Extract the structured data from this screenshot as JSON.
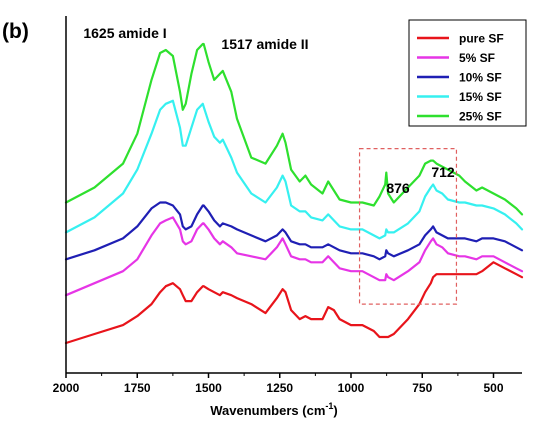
{
  "panel_label": "(b)",
  "chart_data": {
    "type": "line",
    "title": "",
    "xlabel": "Wavenumbers (cm",
    "xlabel_sup": "-1",
    "xlabel_close": ")",
    "ylabel": "",
    "xlim": [
      2000,
      400
    ],
    "ylim": [
      0,
      100
    ],
    "x_reversed": true,
    "y_ticks_shown": false,
    "grid": false,
    "legend_position": "top-right",
    "x_ticks": [
      2000,
      1750,
      1500,
      1250,
      1000,
      750,
      500
    ],
    "annotations": [
      {
        "text": "1625 amide I",
        "x": 1625
      },
      {
        "text": "1517 amide II",
        "x": 1517
      },
      {
        "text": "876",
        "x": 876
      },
      {
        "text": "712",
        "x": 712
      }
    ],
    "highlight_region": {
      "x": [
        970,
        630
      ],
      "y": [
        13,
        65
      ],
      "color": "#e06060",
      "style": "dashed"
    },
    "series": [
      {
        "name": "pure SF",
        "color": "#e8141b",
        "x": [
          2000,
          1900,
          1800,
          1750,
          1700,
          1670,
          1650,
          1625,
          1600,
          1590,
          1580,
          1560,
          1540,
          1520,
          1517,
          1500,
          1480,
          1460,
          1450,
          1420,
          1400,
          1350,
          1300,
          1260,
          1240,
          1230,
          1210,
          1180,
          1160,
          1140,
          1100,
          1080,
          1060,
          1040,
          1000,
          960,
          920,
          900,
          880,
          876,
          870,
          850,
          800,
          760,
          740,
          720,
          712,
          700,
          680,
          660,
          620,
          600,
          560,
          540,
          500,
          460,
          420,
          400
        ],
        "y": [
          0,
          3,
          6,
          9,
          13,
          17,
          19,
          20,
          18,
          16,
          14,
          14,
          17,
          19,
          19,
          18,
          17,
          16,
          17,
          16,
          15,
          13,
          10,
          15,
          18,
          17,
          11,
          8,
          9,
          8,
          8,
          12,
          11,
          8,
          6,
          6,
          4,
          2,
          2,
          2,
          2,
          3,
          8,
          13,
          17,
          20,
          22,
          23,
          23,
          23,
          23,
          23,
          23,
          24,
          27,
          25,
          23,
          22
        ]
      },
      {
        "name": "5% SF",
        "color": "#e635e6",
        "x": [
          2000,
          1900,
          1800,
          1750,
          1700,
          1670,
          1650,
          1625,
          1600,
          1590,
          1580,
          1560,
          1540,
          1520,
          1517,
          1500,
          1480,
          1460,
          1450,
          1420,
          1400,
          1350,
          1300,
          1260,
          1240,
          1230,
          1210,
          1180,
          1160,
          1140,
          1100,
          1080,
          1060,
          1040,
          1000,
          960,
          920,
          900,
          880,
          876,
          870,
          850,
          800,
          760,
          740,
          720,
          712,
          700,
          680,
          660,
          620,
          600,
          560,
          540,
          500,
          460,
          420,
          400
        ],
        "y": [
          16,
          20,
          24,
          28,
          36,
          40,
          41,
          42,
          38,
          34,
          33,
          34,
          38,
          40,
          40,
          38,
          35,
          33,
          34,
          32,
          30,
          29,
          28,
          32,
          35,
          33,
          29,
          28,
          28,
          27,
          27,
          29,
          27,
          25,
          24,
          24,
          22,
          21,
          21,
          23,
          22,
          21,
          24,
          27,
          31,
          34,
          35,
          33,
          32,
          30,
          29,
          29,
          28,
          29,
          29,
          27,
          25,
          24
        ]
      },
      {
        "name": "10% SF",
        "color": "#1f1fb4",
        "x": [
          2000,
          1900,
          1800,
          1750,
          1700,
          1670,
          1650,
          1625,
          1600,
          1590,
          1580,
          1560,
          1540,
          1520,
          1517,
          1500,
          1480,
          1460,
          1450,
          1420,
          1400,
          1350,
          1300,
          1260,
          1240,
          1230,
          1210,
          1180,
          1160,
          1140,
          1100,
          1080,
          1060,
          1040,
          1000,
          960,
          920,
          900,
          880,
          876,
          870,
          850,
          800,
          760,
          740,
          720,
          712,
          700,
          680,
          660,
          620,
          600,
          560,
          540,
          500,
          460,
          420,
          400
        ],
        "y": [
          28,
          31,
          35,
          39,
          45,
          47,
          47,
          46,
          43,
          39,
          38,
          39,
          43,
          46,
          46,
          44,
          41,
          39,
          40,
          39,
          38,
          36,
          34,
          36,
          38,
          37,
          34,
          33,
          33,
          32,
          32,
          33,
          32,
          31,
          30,
          30,
          29,
          28,
          29,
          31,
          30,
          29,
          31,
          33,
          36,
          38,
          39,
          37,
          36,
          35,
          35,
          35,
          34,
          35,
          35,
          34,
          32,
          31
        ]
      },
      {
        "name": "15% SF",
        "color": "#36f0f0",
        "x": [
          2000,
          1900,
          1800,
          1750,
          1700,
          1670,
          1650,
          1625,
          1600,
          1590,
          1580,
          1560,
          1540,
          1520,
          1517,
          1500,
          1480,
          1460,
          1450,
          1420,
          1400,
          1350,
          1300,
          1260,
          1240,
          1230,
          1210,
          1180,
          1160,
          1140,
          1100,
          1080,
          1060,
          1040,
          1000,
          960,
          920,
          900,
          880,
          876,
          870,
          850,
          800,
          760,
          740,
          720,
          712,
          700,
          680,
          660,
          620,
          600,
          560,
          540,
          500,
          460,
          420,
          400
        ],
        "y": [
          37,
          42,
          50,
          58,
          70,
          78,
          80,
          81,
          72,
          66,
          66,
          72,
          78,
          80,
          79,
          74,
          69,
          67,
          68,
          62,
          57,
          50,
          47,
          52,
          56,
          54,
          46,
          44,
          44,
          42,
          41,
          43,
          41,
          39,
          38,
          38,
          36,
          35,
          36,
          38,
          37,
          37,
          40,
          44,
          49,
          52,
          53,
          51,
          50,
          48,
          47,
          47,
          46,
          46,
          45,
          43,
          40,
          38
        ]
      },
      {
        "name": "25% SF",
        "color": "#2ee02e",
        "x": [
          2000,
          1900,
          1800,
          1750,
          1700,
          1670,
          1650,
          1625,
          1600,
          1590,
          1580,
          1560,
          1540,
          1520,
          1517,
          1500,
          1480,
          1460,
          1450,
          1420,
          1400,
          1350,
          1300,
          1260,
          1240,
          1230,
          1210,
          1180,
          1160,
          1140,
          1100,
          1080,
          1060,
          1040,
          1000,
          960,
          920,
          900,
          880,
          876,
          870,
          850,
          800,
          760,
          740,
          720,
          712,
          700,
          680,
          660,
          620,
          600,
          560,
          540,
          500,
          460,
          420,
          400
        ],
        "y": [
          47,
          52,
          60,
          70,
          88,
          97,
          98,
          96,
          84,
          78,
          80,
          90,
          98,
          100,
          100,
          94,
          88,
          90,
          91,
          84,
          75,
          62,
          60,
          66,
          70,
          67,
          58,
          54,
          56,
          53,
          50,
          54,
          51,
          48,
          47,
          47,
          46,
          49,
          53,
          57,
          50,
          47,
          52,
          56,
          60,
          61,
          61,
          60,
          59,
          58,
          56,
          54,
          51,
          52,
          50,
          48,
          45,
          43
        ]
      }
    ]
  }
}
